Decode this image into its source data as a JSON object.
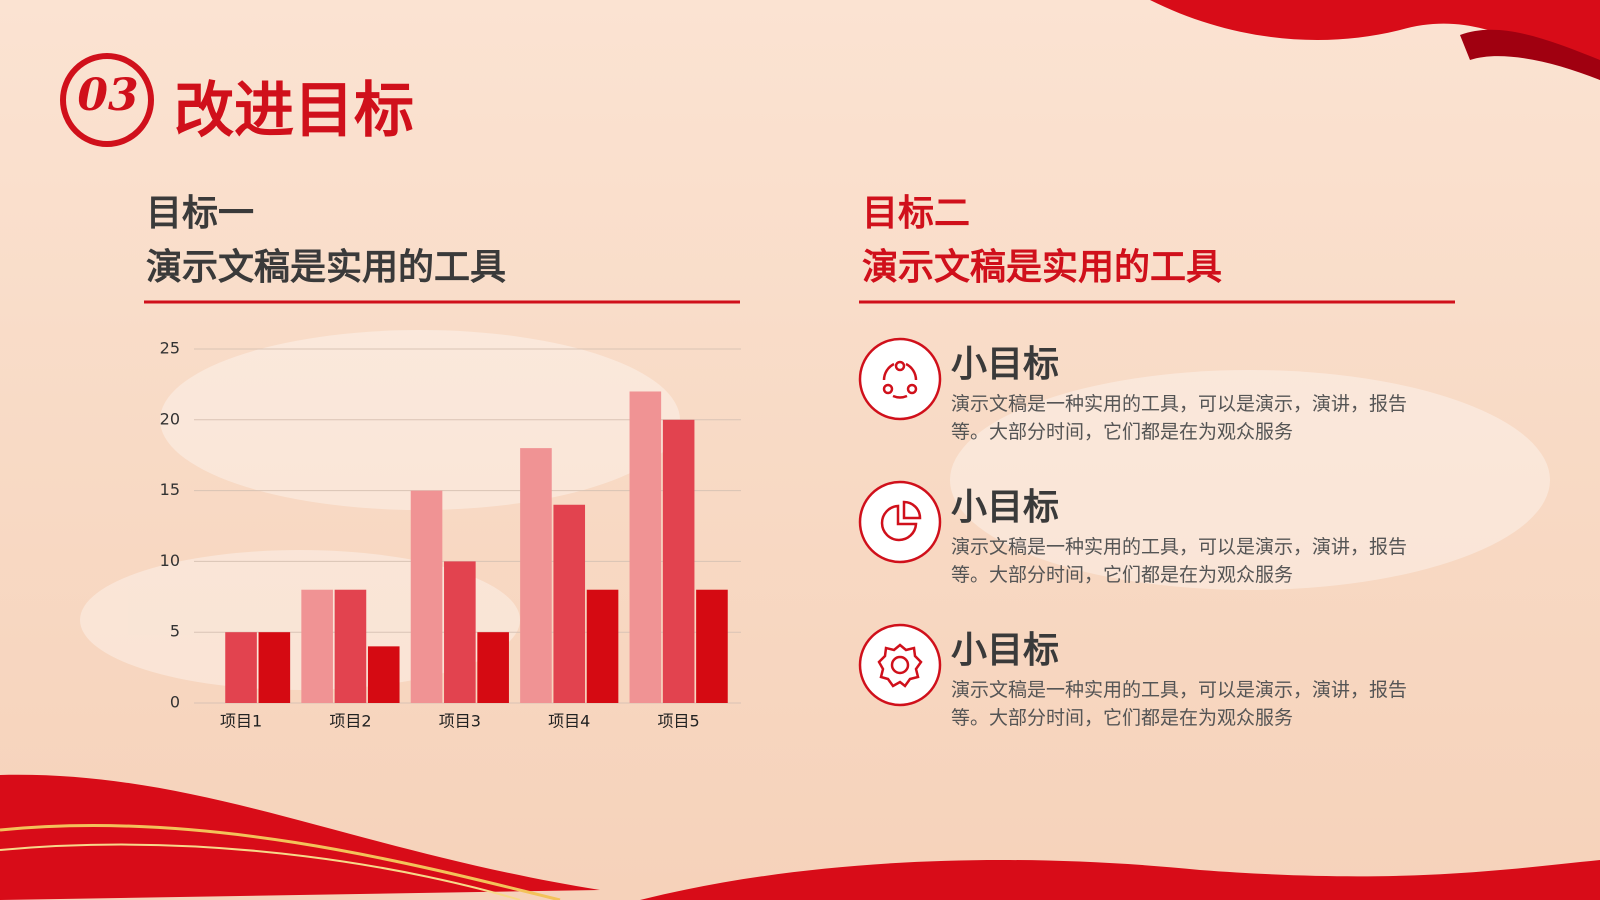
{
  "header": {
    "number": "03",
    "title": "改进目标"
  },
  "left": {
    "heading": "目标一",
    "subheading": "演示文稿是实用的工具"
  },
  "chart_data": {
    "type": "bar",
    "categories": [
      "项目1",
      "项目2",
      "项目3",
      "项目4",
      "项目5"
    ],
    "series": [
      {
        "color": "#f09394",
        "values": [
          0,
          8,
          15,
          18,
          22
        ]
      },
      {
        "color": "#e2434f",
        "values": [
          5,
          8,
          10,
          14,
          20
        ]
      },
      {
        "color": "#d50a12",
        "values": [
          5,
          4,
          5,
          8,
          8
        ]
      }
    ],
    "ylim": [
      0,
      25
    ],
    "yticks": [
      0,
      5,
      10,
      15,
      20,
      25
    ],
    "grid": true
  },
  "right": {
    "heading": "目标二",
    "subheading": "演示文稿是实用的工具",
    "items": [
      {
        "title": "小目标",
        "text": "演示文稿是一种实用的工具，可以是演示，演讲，报告等。大部分时间，它们都是在为观众服务"
      },
      {
        "title": "小目标",
        "text": "演示文稿是一种实用的工具，可以是演示，演讲，报告等。大部分时间，它们都是在为观众服务"
      },
      {
        "title": "小目标",
        "text": "演示文稿是一种实用的工具，可以是演示，演讲，报告等。大部分时间，它们都是在为观众服务"
      }
    ]
  }
}
